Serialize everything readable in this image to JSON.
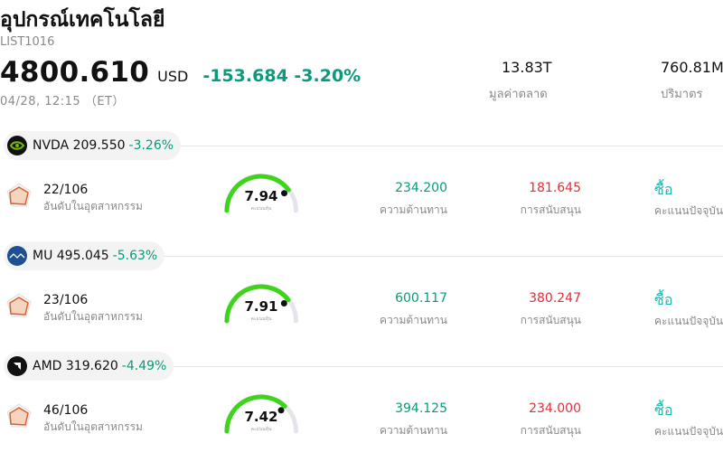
{
  "header": {
    "title": "อุปกรณ์เทคโนโลยี",
    "code": "LIST1016",
    "price": "4800.610",
    "currency": "USD",
    "change": "-153.684 -3.20%",
    "time": "04/28, 12:15 （ET）",
    "market_cap_value": "13.83T",
    "market_cap_label": "มูลค่าตลาด",
    "volume_value": "760.81M",
    "volume_label": "ปริมาตร"
  },
  "labels": {
    "rank": "อันดับในอุตสาหกรรม",
    "score": "คะแนนหุ้น",
    "resistance": "ความต้านทาน",
    "support": "การสนับสนุน",
    "rating": "คะแนนปัจจุบัน"
  },
  "colors": {
    "up": "#0b9a7a",
    "down": "#e0303c",
    "gauge": "#3dd51a",
    "buy": "#1fb5b0"
  },
  "stocks": [
    {
      "ticker_price": "NVDA 209.550",
      "change": "-3.26%",
      "logo_icon": "nvidia-logo-icon",
      "rank": "22/106",
      "score": "7.94",
      "resistance": "234.200",
      "support": "181.645",
      "rating": "ซื้อ"
    },
    {
      "ticker_price": "MU 495.045",
      "change": "-5.63%",
      "logo_icon": "micron-logo-icon",
      "rank": "23/106",
      "score": "7.91",
      "resistance": "600.117",
      "support": "380.247",
      "rating": "ซื้อ"
    },
    {
      "ticker_price": "AMD 319.620",
      "change": "-4.49%",
      "logo_icon": "amd-logo-icon",
      "rank": "46/106",
      "score": "7.42",
      "resistance": "394.125",
      "support": "234.000",
      "rating": "ซื้อ"
    }
  ]
}
